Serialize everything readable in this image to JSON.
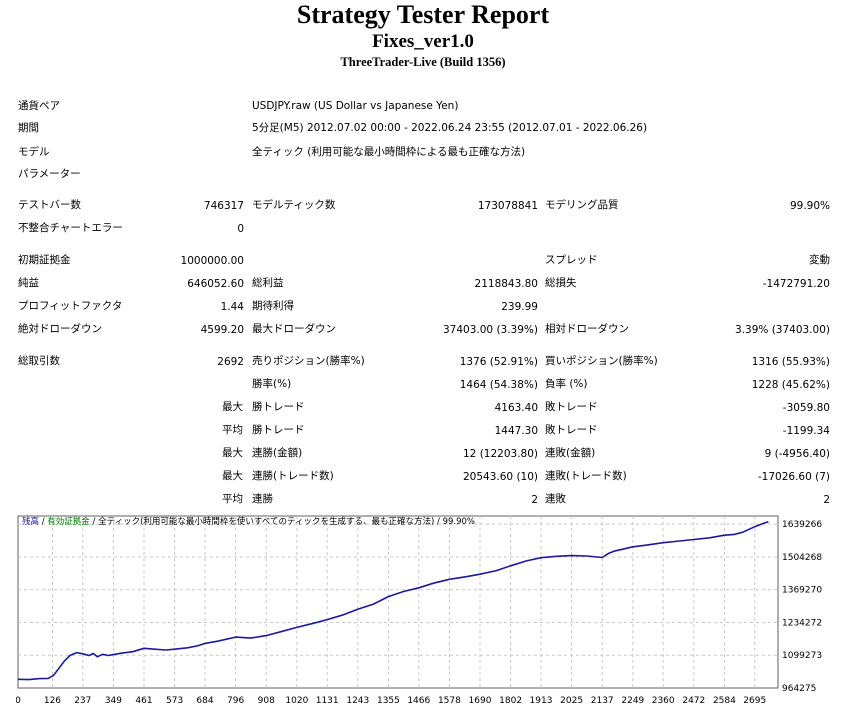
{
  "header": {
    "title": "Strategy Tester Report",
    "expert": "Fixes_ver1.0",
    "server": "ThreeTrader-Live (Build 1356)"
  },
  "info": {
    "symbol_label": "通貨ペア",
    "symbol_value": "USDJPY.raw (US Dollar vs Japanese Yen)",
    "period_label": "期間",
    "period_value": "5分足(M5) 2012.07.02 00:00 - 2022.06.24 23:55 (2012.07.01 - 2022.06.26)",
    "model_label": "モデル",
    "model_value": "全ティック (利用可能な最小時間枠による最も正確な方法)",
    "params_label": "パラメーター"
  },
  "stats": {
    "bars_label": "テストバー数",
    "bars_value": "746317",
    "ticks_label": "モデルティック数",
    "ticks_value": "173078841",
    "quality_label": "モデリング品質",
    "quality_value": "99.90%",
    "errors_label": "不整合チャートエラー",
    "errors_value": "0",
    "deposit_label": "初期証拠金",
    "deposit_value": "1000000.00",
    "spread_label": "スプレッド",
    "spread_value": "変動",
    "net_label": "純益",
    "net_value": "646052.60",
    "gross_profit_label": "総利益",
    "gross_profit_value": "2118843.80",
    "gross_loss_label": "総損失",
    "gross_loss_value": "-1472791.20",
    "pf_label": "プロフィットファクタ",
    "pf_value": "1.44",
    "payoff_label": "期待利得",
    "payoff_value": "239.99",
    "abs_dd_label": "絶対ドローダウン",
    "abs_dd_value": "4599.20",
    "max_dd_label": "最大ドローダウン",
    "max_dd_value": "37403.00 (3.39%)",
    "rel_dd_label": "相対ドローダウン",
    "rel_dd_value": "3.39% (37403.00)",
    "trades_label": "総取引数",
    "trades_value": "2692",
    "short_label": "売りポジション(勝率%)",
    "short_value": "1376 (52.91%)",
    "long_label": "買いポジション(勝率%)",
    "long_value": "1316 (55.93%)",
    "winrate_label": "勝率(%)",
    "winrate_value": "1464 (54.38%)",
    "lossrate_label": "負率 (%)",
    "lossrate_value": "1228 (45.62%)",
    "max_pre": "最大",
    "avg_pre": "平均",
    "largest_win_label": "勝トレード",
    "largest_win_value": "4163.40",
    "largest_loss_label": "敗トレード",
    "largest_loss_value": "-3059.80",
    "avg_win_label": "勝トレード",
    "avg_win_value": "1447.30",
    "avg_loss_label": "敗トレード",
    "avg_loss_value": "-1199.34",
    "cons_wins_money_label": "連勝(金額)",
    "cons_wins_money_value": "12 (12203.80)",
    "cons_loss_money_label": "連敗(金額)",
    "cons_loss_money_value": "9 (-4956.40)",
    "cons_profit_label": "連勝(トレード数)",
    "cons_profit_value": "20543.60 (10)",
    "cons_loss_label": "連敗(トレード数)",
    "cons_loss_value": "-17026.60 (7)",
    "avg_cons_win_label": "連勝",
    "avg_cons_win_value": "2",
    "avg_cons_loss_label": "連敗",
    "avg_cons_loss_value": "2"
  },
  "chart_legend": {
    "balance": "残高",
    "sep1": " / ",
    "equity": "有効証拠金",
    "sep2": " / ",
    "model": "全ティック(利用可能な最小時間枠を使いすべてのティックを生成する、最も正確な方法)",
    "sep3": " / ",
    "quality": "99.90%"
  },
  "colors": {
    "balance_line": "#1a1aa0",
    "grid": "#c8c8c8",
    "legend_green": "#008000"
  },
  "chart_data": {
    "type": "line",
    "title": "",
    "xlabel": "",
    "ylabel": "",
    "x_ticks": [
      0,
      126,
      237,
      349,
      461,
      573,
      684,
      796,
      908,
      1020,
      1131,
      1243,
      1355,
      1466,
      1578,
      1690,
      1802,
      1913,
      2025,
      2137,
      2249,
      2360,
      2472,
      2584,
      2695
    ],
    "y_ticks": [
      964275,
      1099273,
      1234272,
      1369270,
      1504268,
      1639266
    ],
    "xlim": [
      0,
      2780
    ],
    "ylim": [
      964275,
      1673000
    ],
    "grid": true,
    "series": [
      {
        "color": "#1a1aa0",
        "x": [
          0,
          40,
          80,
          110,
          130,
          150,
          170,
          190,
          215,
          237,
          260,
          275,
          290,
          310,
          330,
          349,
          380,
          420,
          461,
          500,
          540,
          573,
          620,
          660,
          684,
          730,
          796,
          850,
          908,
          960,
          1020,
          1080,
          1131,
          1190,
          1243,
          1300,
          1355,
          1410,
          1466,
          1520,
          1578,
          1640,
          1690,
          1750,
          1802,
          1860,
          1913,
          1970,
          2025,
          2080,
          2137,
          2160,
          2180,
          2249,
          2300,
          2360,
          2420,
          2472,
          2530,
          2584,
          2620,
          2650,
          2695,
          2720,
          2745
        ],
        "y": [
          1000000,
          999000,
          1003000,
          1004000,
          1016000,
          1046000,
          1076000,
          1098000,
          1110000,
          1105000,
          1098000,
          1107000,
          1093000,
          1103000,
          1098000,
          1102000,
          1108000,
          1114000,
          1128000,
          1124000,
          1121000,
          1124000,
          1130000,
          1139000,
          1148000,
          1157000,
          1174000,
          1170000,
          1180000,
          1196000,
          1214000,
          1231000,
          1246000,
          1266000,
          1289000,
          1310000,
          1341000,
          1362000,
          1377000,
          1396000,
          1412000,
          1423000,
          1433000,
          1448000,
          1468000,
          1488000,
          1501000,
          1507000,
          1510000,
          1508000,
          1502000,
          1519000,
          1528000,
          1546000,
          1553000,
          1563000,
          1570000,
          1576000,
          1583000,
          1594000,
          1597000,
          1606000,
          1629000,
          1640000,
          1649000
        ]
      }
    ]
  }
}
